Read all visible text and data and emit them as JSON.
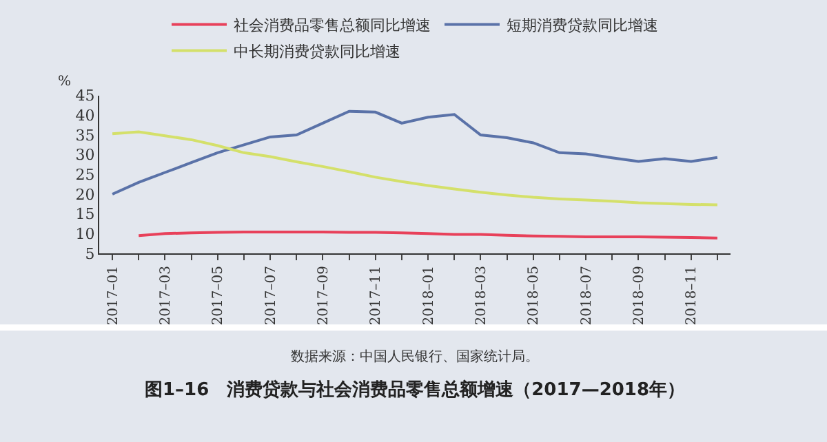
{
  "chart_data": {
    "type": "line",
    "title": "图1–16　消费贷款与社会消费品零售总额增速（2017—2018年）",
    "ylabel": "%",
    "annotations": [
      "数据来源：中国人民银行、国家统计局。"
    ],
    "categories": [
      "2017–01",
      null,
      "2017–03",
      null,
      "2017–05",
      null,
      "2017–07",
      null,
      "2017–09",
      null,
      "2017–11",
      null,
      "2018–01",
      null,
      "2018–03",
      null,
      "2018–05",
      null,
      "2018–07",
      null,
      "2018–09",
      null,
      "2018–11",
      null
    ],
    "series": [
      {
        "name": "社会消费品零售总额同比增速",
        "color": "#e8415a",
        "values": [
          null,
          9.5,
          10.0,
          10.2,
          10.3,
          10.4,
          10.4,
          10.4,
          10.4,
          10.3,
          10.3,
          10.2,
          10.0,
          9.8,
          9.8,
          9.6,
          9.4,
          9.3,
          9.2,
          9.2,
          9.2,
          9.1,
          9.0,
          8.9
        ]
      },
      {
        "name": "短期消费贷款同比增速",
        "color": "#5a72a8",
        "values": [
          20,
          23,
          25.5,
          28,
          30.5,
          32.5,
          34.5,
          35,
          38,
          41,
          40.8,
          38,
          39.5,
          40.2,
          35,
          34.3,
          33,
          30.5,
          30.2,
          29.2,
          28.3,
          29,
          28.3,
          29.3
        ]
      },
      {
        "name": "中长期消费贷款同比增速",
        "color": "#d4e06a",
        "values": [
          35.3,
          35.8,
          34.8,
          33.8,
          32.3,
          30.5,
          29.5,
          28.2,
          27,
          25.7,
          24.3,
          23.2,
          22.2,
          21.3,
          20.5,
          19.8,
          19.2,
          18.8,
          18.5,
          18.2,
          17.8,
          17.6,
          17.4,
          17.3
        ]
      }
    ],
    "ylim": [
      5,
      45
    ],
    "yticks": [
      5,
      10,
      15,
      20,
      25,
      30,
      35,
      40,
      45
    ],
    "grid": false,
    "legend": "top",
    "marker": "none",
    "line_style": "solid"
  }
}
